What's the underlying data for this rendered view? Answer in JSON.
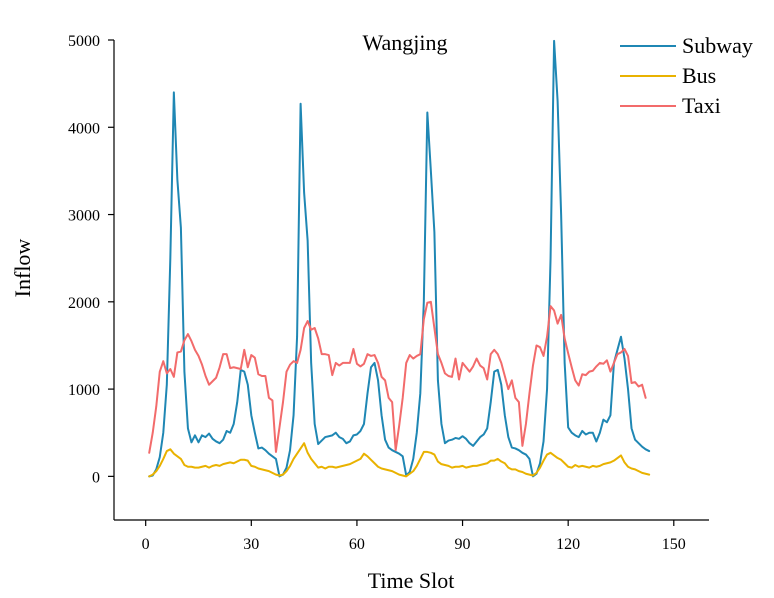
{
  "chart_data": {
    "type": "line",
    "title": "Wangjing",
    "xlabel": "Time Slot",
    "ylabel": "Inflow",
    "xlim": [
      -9,
      160
    ],
    "ylim": [
      -500,
      5000
    ],
    "xticks": [
      0,
      30,
      60,
      90,
      120,
      150
    ],
    "yticks": [
      0,
      1000,
      2000,
      3000,
      4000,
      5000
    ],
    "x_start": 1,
    "legend_position": "top-right",
    "series": [
      {
        "name": "Subway",
        "color": "#1f87b4",
        "values": [
          0,
          10,
          80,
          220,
          500,
          1050,
          2500,
          4400,
          3400,
          2850,
          1200,
          550,
          390,
          470,
          390,
          470,
          450,
          490,
          430,
          400,
          380,
          420,
          520,
          500,
          600,
          850,
          1220,
          1200,
          1050,
          700,
          500,
          320,
          330,
          300,
          260,
          230,
          200,
          0,
          20,
          100,
          300,
          700,
          1600,
          4270,
          3250,
          2700,
          1300,
          600,
          370,
          410,
          450,
          460,
          470,
          500,
          450,
          430,
          380,
          400,
          470,
          480,
          520,
          600,
          950,
          1250,
          1300,
          1100,
          700,
          420,
          330,
          300,
          280,
          260,
          230,
          10,
          50,
          200,
          500,
          950,
          2000,
          4170,
          3500,
          2800,
          1100,
          600,
          380,
          410,
          420,
          440,
          430,
          460,
          430,
          380,
          350,
          400,
          450,
          480,
          550,
          850,
          1200,
          1220,
          1050,
          700,
          450,
          330,
          320,
          300,
          270,
          250,
          200,
          0,
          30,
          150,
          400,
          1000,
          2500,
          4990,
          4300,
          3000,
          1300,
          560,
          500,
          470,
          450,
          520,
          480,
          500,
          500,
          400,
          500,
          650,
          620,
          700,
          1300,
          1450,
          1600,
          1350,
          1000,
          550,
          420,
          380,
          340,
          310,
          290
        ]
      },
      {
        "name": "Bus",
        "color": "#e9b200",
        "values": [
          0,
          20,
          60,
          120,
          200,
          290,
          310,
          260,
          230,
          200,
          130,
          110,
          110,
          100,
          100,
          110,
          120,
          100,
          120,
          130,
          120,
          140,
          150,
          160,
          150,
          170,
          190,
          190,
          180,
          120,
          110,
          90,
          80,
          70,
          60,
          40,
          20,
          10,
          20,
          60,
          120,
          200,
          260,
          320,
          380,
          270,
          200,
          150,
          100,
          110,
          90,
          110,
          110,
          100,
          110,
          120,
          130,
          140,
          160,
          180,
          200,
          260,
          230,
          190,
          150,
          110,
          90,
          80,
          70,
          60,
          40,
          20,
          10,
          0,
          30,
          60,
          120,
          200,
          280,
          280,
          270,
          250,
          170,
          140,
          130,
          120,
          100,
          110,
          110,
          120,
          100,
          110,
          120,
          120,
          130,
          140,
          150,
          180,
          180,
          200,
          170,
          150,
          100,
          80,
          80,
          60,
          50,
          30,
          20,
          10,
          40,
          100,
          180,
          250,
          270,
          240,
          210,
          190,
          150,
          110,
          100,
          130,
          110,
          120,
          110,
          100,
          120,
          110,
          120,
          140,
          150,
          160,
          180,
          210,
          240,
          160,
          110,
          90,
          80,
          60,
          40,
          30,
          20
        ]
      },
      {
        "name": "Taxi",
        "color": "#f26b6b",
        "values": [
          270,
          500,
          800,
          1200,
          1320,
          1180,
          1230,
          1140,
          1420,
          1430,
          1560,
          1630,
          1550,
          1450,
          1380,
          1280,
          1150,
          1050,
          1090,
          1130,
          1250,
          1400,
          1400,
          1240,
          1250,
          1240,
          1230,
          1450,
          1250,
          1390,
          1360,
          1170,
          1150,
          1150,
          900,
          870,
          280,
          560,
          850,
          1200,
          1280,
          1320,
          1300,
          1450,
          1700,
          1780,
          1680,
          1700,
          1580,
          1400,
          1400,
          1390,
          1160,
          1300,
          1270,
          1300,
          1300,
          1300,
          1460,
          1290,
          1260,
          1290,
          1400,
          1380,
          1390,
          1300,
          1140,
          1100,
          900,
          850,
          300,
          580,
          900,
          1300,
          1390,
          1350,
          1380,
          1400,
          1800,
          1990,
          2000,
          1700,
          1400,
          1300,
          1180,
          1150,
          1140,
          1350,
          1110,
          1300,
          1250,
          1200,
          1260,
          1350,
          1270,
          1240,
          1110,
          1400,
          1450,
          1400,
          1300,
          1150,
          1000,
          1100,
          900,
          850,
          350,
          600,
          950,
          1270,
          1500,
          1480,
          1380,
          1600,
          1950,
          1900,
          1750,
          1850,
          1580,
          1410,
          1250,
          1100,
          1040,
          1170,
          1160,
          1200,
          1210,
          1260,
          1300,
          1290,
          1330,
          1200,
          1300,
          1400,
          1420,
          1460,
          1380,
          1070,
          1080,
          1030,
          1050,
          900
        ]
      }
    ]
  }
}
